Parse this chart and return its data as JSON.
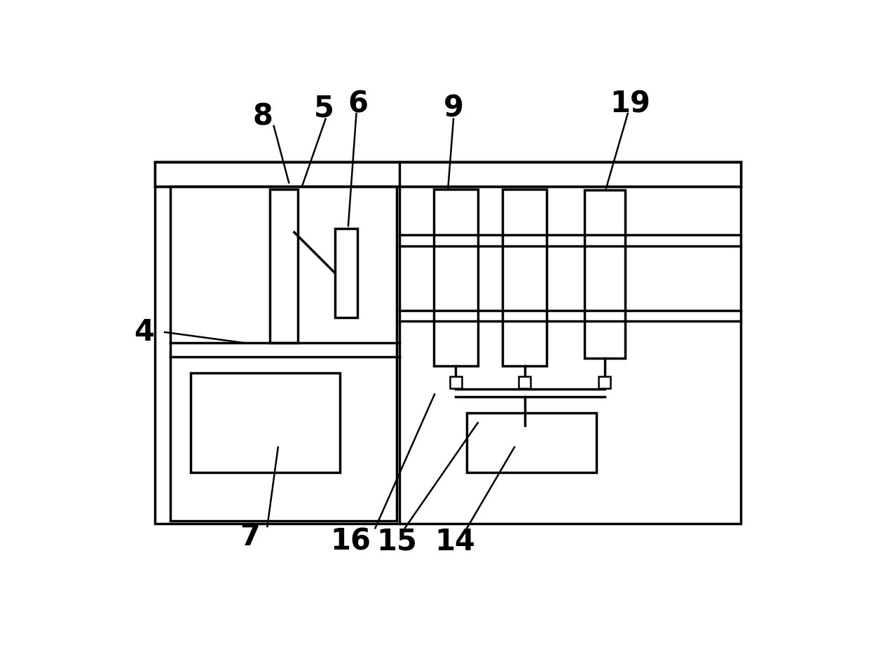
{
  "fig_width": 12.4,
  "fig_height": 9.33,
  "bg_color": "#ffffff",
  "line_color": "#000000",
  "lw": 2.5,
  "lw_thin": 1.8,
  "label_fontsize": 30
}
